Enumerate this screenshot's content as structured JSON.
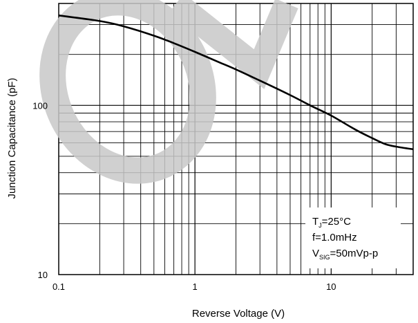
{
  "chart_data": {
    "type": "line",
    "xlabel": "Reverse Voltage (V)",
    "ylabel": "Junction Capacitance (pF)",
    "x_scale": "log",
    "y_scale": "log",
    "xlim": [
      0.1,
      40
    ],
    "ylim": [
      10,
      400
    ],
    "x_ticks": [
      {
        "value": 0.1,
        "label": "0.1"
      },
      {
        "value": 1,
        "label": "1"
      },
      {
        "value": 10,
        "label": "10"
      }
    ],
    "y_ticks": [
      {
        "value": 10,
        "label": "10"
      },
      {
        "value": 100,
        "label": "100"
      }
    ],
    "grid": true,
    "series": [
      {
        "x": [
          0.1,
          0.2,
          0.3,
          0.5,
          0.7,
          1,
          1.5,
          2,
          3,
          5,
          7,
          10,
          15,
          20,
          25,
          30,
          40
        ],
        "y": [
          340,
          315,
          293,
          258,
          233,
          207,
          180,
          163,
          140,
          115,
          100,
          87,
          72,
          64,
          59,
          57,
          55
        ]
      }
    ],
    "conditions": {
      "tj_main": "T",
      "tj_sub": "J",
      "tj_rest": "=25°C",
      "freq": "f=1.0mHz",
      "vsig_main": "V",
      "vsig_sub": "SIG",
      "vsig_rest": "=50mVp-p"
    },
    "annotation_position": "bottom-right",
    "colors": {
      "line": "#000000",
      "grid": "#000000",
      "watermark": "#c8c8c8"
    }
  }
}
